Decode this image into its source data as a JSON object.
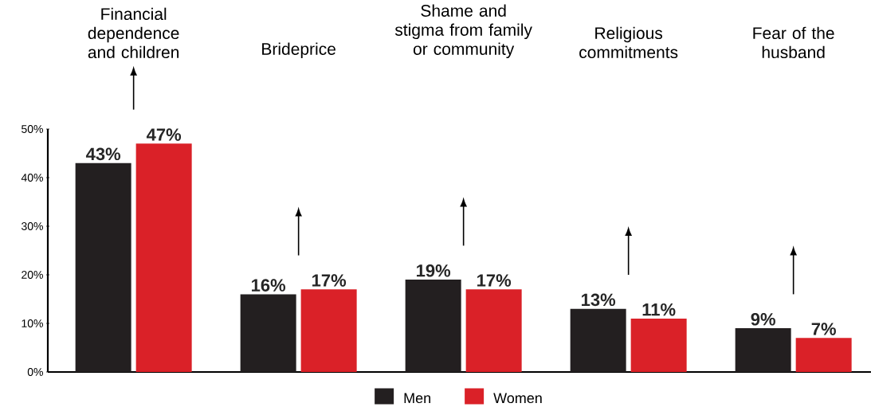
{
  "chart_data": {
    "type": "bar",
    "categories": [
      "Financial dependence and children",
      "Brideprice",
      "Shame and stigma from family or community",
      "Religious commitments",
      "Fear of the husband"
    ],
    "series": [
      {
        "name": "Men",
        "color": "#231f20",
        "values": [
          43,
          16,
          19,
          13,
          9
        ],
        "value_labels": [
          "43%",
          "16%",
          "19%",
          "13%",
          "9%"
        ]
      },
      {
        "name": "Women",
        "color": "#da2128",
        "values": [
          47,
          17,
          17,
          11,
          7
        ],
        "value_labels": [
          "47%",
          "17%",
          "17%",
          "11%",
          "7%"
        ]
      }
    ],
    "ylim": [
      0,
      50
    ],
    "yticks": [
      {
        "value": 0,
        "label": "0%"
      },
      {
        "value": 10,
        "label": "10%"
      },
      {
        "value": 20,
        "label": "20%"
      },
      {
        "value": 30,
        "label": "30%"
      },
      {
        "value": 40,
        "label": "40%"
      },
      {
        "value": 50,
        "label": "50%"
      }
    ],
    "legend": "bottom"
  }
}
